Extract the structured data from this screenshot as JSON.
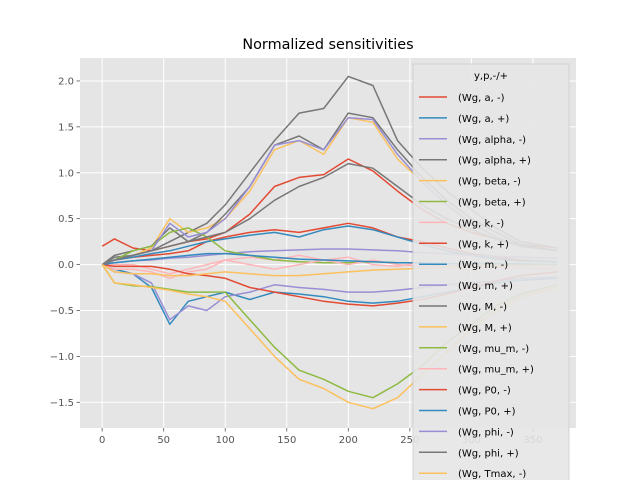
{
  "chart_data": {
    "type": "line",
    "title": "Normalized sensitivities",
    "xlabel": "",
    "ylabel": "",
    "xlim": [
      -18,
      385
    ],
    "ylim": [
      -1.78,
      2.25
    ],
    "xticks": [
      0,
      50,
      100,
      150,
      200,
      250,
      300,
      350
    ],
    "xtick_labels": [
      "0",
      "50",
      "100",
      "150",
      "200",
      "250",
      "300",
      "350"
    ],
    "yticks": [
      -1.5,
      -1.0,
      -0.5,
      0.0,
      0.5,
      1.0,
      1.5,
      2.0
    ],
    "ytick_labels": [
      "−1.5",
      "−1.0",
      "−0.5",
      "0.0",
      "0.5",
      "1.0",
      "1.5",
      "2.0"
    ],
    "grid": true,
    "legend_title": "y,p,-/+",
    "legend_position": "right",
    "x": [
      0,
      10,
      25,
      40,
      55,
      70,
      85,
      100,
      120,
      140,
      160,
      180,
      200,
      220,
      240,
      260,
      280,
      300,
      320,
      340,
      370
    ],
    "series": [
      {
        "name": "(Wg, a, -)",
        "color": "#E24A33",
        "values": [
          0.2,
          0.28,
          0.18,
          0.15,
          0.2,
          0.25,
          0.28,
          0.35,
          0.55,
          0.85,
          0.95,
          0.98,
          1.15,
          1.02,
          0.8,
          0.6,
          0.45,
          0.35,
          0.28,
          0.22,
          0.18
        ]
      },
      {
        "name": "(Wg, a, +)",
        "color": "#348ABD",
        "values": [
          0.0,
          -0.05,
          -0.1,
          -0.25,
          -0.65,
          -0.4,
          -0.35,
          -0.3,
          -0.38,
          -0.3,
          -0.32,
          -0.35,
          -0.4,
          -0.42,
          -0.4,
          -0.35,
          -0.3,
          -0.25,
          -0.2,
          -0.17,
          -0.15
        ]
      },
      {
        "name": "(Wg, alpha, -)",
        "color": "#988ED5",
        "values": [
          0.0,
          -0.08,
          -0.1,
          -0.2,
          -0.6,
          -0.45,
          -0.5,
          -0.35,
          -0.3,
          -0.22,
          -0.25,
          -0.27,
          -0.3,
          -0.3,
          -0.28,
          -0.25,
          -0.22,
          -0.2,
          -0.18,
          -0.15,
          -0.14
        ]
      },
      {
        "name": "(Wg, alpha, +)",
        "color": "#777777",
        "values": [
          0.0,
          0.08,
          0.1,
          0.15,
          0.25,
          0.35,
          0.45,
          0.65,
          1.0,
          1.35,
          1.65,
          1.7,
          2.05,
          1.95,
          1.35,
          1.05,
          0.8,
          0.6,
          0.4,
          0.25,
          0.18
        ]
      },
      {
        "name": "(Wg, beta, -)",
        "color": "#FBC15E",
        "values": [
          0.0,
          0.05,
          0.1,
          0.18,
          0.5,
          0.35,
          0.4,
          0.5,
          0.8,
          1.25,
          1.35,
          1.2,
          1.6,
          1.55,
          1.15,
          0.9,
          0.65,
          0.45,
          0.3,
          0.2,
          0.15
        ]
      },
      {
        "name": "(Wg, beta, +)",
        "color": "#8EBA42",
        "values": [
          0.0,
          -0.2,
          -0.23,
          -0.24,
          -0.27,
          -0.3,
          -0.3,
          -0.3,
          -0.6,
          -0.9,
          -1.15,
          -1.25,
          -1.38,
          -1.45,
          -1.3,
          -1.1,
          -0.85,
          -0.65,
          -0.45,
          -0.32,
          -0.22
        ]
      },
      {
        "name": "(Wg, k, -)",
        "color": "#FFB5B8",
        "values": [
          0.0,
          -0.05,
          -0.05,
          -0.08,
          -0.15,
          -0.08,
          -0.05,
          0.05,
          0.08,
          0.05,
          0.1,
          0.05,
          0.08,
          0.0,
          -0.02,
          0.03,
          -0.02,
          -0.03,
          -0.03,
          -0.04,
          -0.05
        ]
      },
      {
        "name": "(Wg, k, +)",
        "color": "#E24A33",
        "values": [
          0.0,
          0.05,
          0.08,
          0.1,
          0.12,
          0.15,
          0.25,
          0.3,
          0.35,
          0.38,
          0.35,
          0.4,
          0.45,
          0.4,
          0.3,
          0.25,
          0.18,
          0.12,
          0.08,
          0.05,
          0.03
        ]
      },
      {
        "name": "(Wg, m, -)",
        "color": "#348ABD",
        "values": [
          0.0,
          0.05,
          0.08,
          0.12,
          0.15,
          0.2,
          0.25,
          0.28,
          0.32,
          0.35,
          0.3,
          0.38,
          0.42,
          0.38,
          0.3,
          0.22,
          0.15,
          0.1,
          0.06,
          0.04,
          0.03
        ]
      },
      {
        "name": "(Wg, m, +)",
        "color": "#988ED5",
        "values": [
          0.0,
          0.02,
          0.04,
          0.05,
          0.07,
          0.08,
          0.1,
          0.12,
          0.14,
          0.15,
          0.16,
          0.17,
          0.17,
          0.16,
          0.15,
          0.13,
          0.12,
          0.1,
          0.09,
          0.08,
          0.07
        ]
      },
      {
        "name": "(Wg, M, -)",
        "color": "#777777",
        "values": [
          0.0,
          0.1,
          0.15,
          0.2,
          0.4,
          0.25,
          0.35,
          0.55,
          0.85,
          1.3,
          1.4,
          1.25,
          1.65,
          1.6,
          1.25,
          0.95,
          0.7,
          0.5,
          0.35,
          0.22,
          0.15
        ]
      },
      {
        "name": "(Wg, M, +)",
        "color": "#FBC15E",
        "values": [
          0.0,
          -0.2,
          -0.22,
          -0.25,
          -0.28,
          -0.32,
          -0.35,
          -0.4,
          -0.7,
          -1.0,
          -1.25,
          -1.35,
          -1.5,
          -1.57,
          -1.45,
          -1.2,
          -0.95,
          -0.7,
          -0.5,
          -0.35,
          -0.25
        ]
      },
      {
        "name": "(Wg, mu_m, -)",
        "color": "#8EBA42",
        "values": [
          0.0,
          0.05,
          0.15,
          0.2,
          0.35,
          0.4,
          0.3,
          0.15,
          0.1,
          0.05,
          0.03,
          0.02,
          0.02,
          0.03,
          0.02,
          0.02,
          0.01,
          0.01,
          0.01,
          0.0,
          0.0
        ]
      },
      {
        "name": "(Wg, mu_m, +)",
        "color": "#FFB5B8",
        "values": [
          0.0,
          0.0,
          0.0,
          -0.05,
          -0.1,
          -0.05,
          0.0,
          0.05,
          0.0,
          -0.05,
          0.0,
          0.05,
          0.0,
          0.05,
          0.0,
          -0.02,
          -0.02,
          -0.01,
          -0.01,
          -0.01,
          0.0
        ]
      },
      {
        "name": "(Wg, P0, -)",
        "color": "#E24A33",
        "values": [
          0.0,
          -0.02,
          -0.02,
          -0.02,
          -0.05,
          -0.1,
          -0.12,
          -0.15,
          -0.25,
          -0.3,
          -0.35,
          -0.4,
          -0.43,
          -0.45,
          -0.42,
          -0.38,
          -0.32,
          -0.25,
          -0.18,
          -0.12,
          -0.08
        ]
      },
      {
        "name": "(Wg, P0, +)",
        "color": "#348ABD",
        "values": [
          0.0,
          0.02,
          0.04,
          0.06,
          0.08,
          0.1,
          0.12,
          0.12,
          0.1,
          0.08,
          0.06,
          0.05,
          0.04,
          0.03,
          0.02,
          0.02,
          0.01,
          0.01,
          0.01,
          0.01,
          0.0
        ]
      },
      {
        "name": "(Wg, phi, -)",
        "color": "#988ED5",
        "values": [
          0.0,
          0.05,
          0.1,
          0.15,
          0.45,
          0.3,
          0.35,
          0.5,
          0.85,
          1.3,
          1.35,
          1.25,
          1.6,
          1.58,
          1.2,
          0.9,
          0.65,
          0.45,
          0.3,
          0.2,
          0.15
        ]
      },
      {
        "name": "(Wg, phi, +)",
        "color": "#777777",
        "values": [
          0.0,
          0.05,
          0.1,
          0.15,
          0.2,
          0.25,
          0.3,
          0.35,
          0.5,
          0.7,
          0.85,
          0.95,
          1.1,
          1.05,
          0.85,
          0.65,
          0.5,
          0.38,
          0.28,
          0.2,
          0.15
        ]
      },
      {
        "name": "(Wg, Tmax, -)",
        "color": "#FBC15E",
        "values": [
          0.0,
          -0.08,
          -0.1,
          -0.1,
          -0.12,
          -0.12,
          -0.1,
          -0.08,
          -0.1,
          -0.12,
          -0.12,
          -0.1,
          -0.08,
          -0.06,
          -0.05,
          -0.04,
          -0.03,
          -0.02,
          -0.02,
          -0.01,
          -0.01
        ]
      }
    ]
  }
}
